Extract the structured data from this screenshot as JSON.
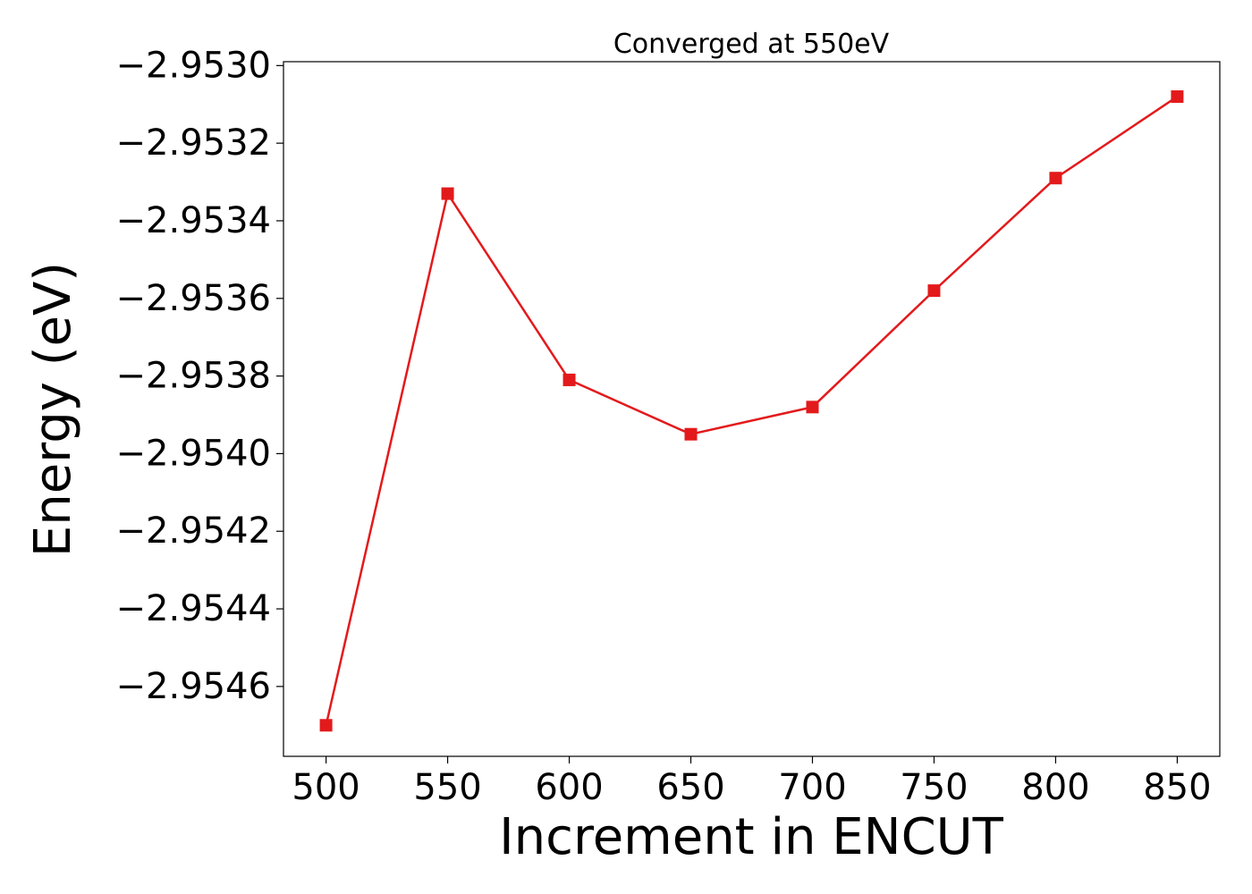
{
  "chart_data": {
    "type": "line",
    "title": "Converged at 550eV",
    "xlabel": "Increment in ENCUT",
    "ylabel": "Energy (eV)",
    "x": [
      500,
      550,
      600,
      650,
      700,
      750,
      800,
      850
    ],
    "series": [
      {
        "values": [
          -2.9547,
          -2.95333,
          -2.95381,
          -2.95395,
          -2.95388,
          -2.95358,
          -2.95329,
          -2.95308
        ],
        "color": "#e31a1c",
        "marker": "square"
      }
    ],
    "xlim": [
      482.5,
      867.5
    ],
    "ylim": [
      -2.95478,
      -2.95299
    ],
    "xticks": [
      500,
      550,
      600,
      650,
      700,
      750,
      800,
      850
    ],
    "xtick_labels": [
      "500",
      "550",
      "600",
      "650",
      "700",
      "750",
      "800",
      "850"
    ],
    "yticks": [
      -2.953,
      -2.9532,
      -2.9534,
      -2.9536,
      -2.9538,
      -2.954,
      -2.9542,
      -2.9544,
      -2.9546
    ],
    "ytick_labels": [
      "−2.9530",
      "−2.9532",
      "−2.9534",
      "−2.9536",
      "−2.9538",
      "−2.9540",
      "−2.9542",
      "−2.9544",
      "−2.9546"
    ],
    "grid": false,
    "legend": false
  }
}
